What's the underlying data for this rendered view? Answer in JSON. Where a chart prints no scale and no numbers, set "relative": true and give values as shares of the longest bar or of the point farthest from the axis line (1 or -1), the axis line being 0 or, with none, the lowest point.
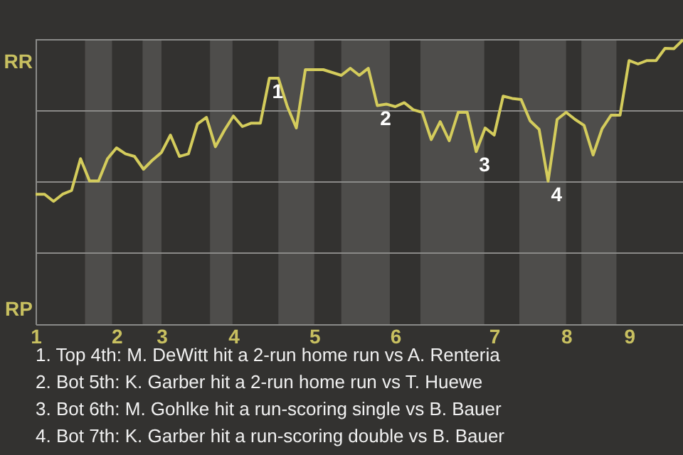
{
  "chart_data": {
    "type": "line",
    "relative": true,
    "categories": [
      "1",
      null,
      null,
      null,
      null,
      null,
      null,
      null,
      null,
      "2",
      null,
      null,
      null,
      null,
      "3",
      null,
      null,
      null,
      null,
      null,
      null,
      null,
      "4",
      null,
      null,
      null,
      null,
      null,
      null,
      null,
      null,
      "5",
      null,
      null,
      null,
      null,
      null,
      null,
      null,
      null,
      "6",
      null,
      null,
      null,
      null,
      null,
      null,
      null,
      null,
      null,
      null,
      "7",
      null,
      null,
      null,
      null,
      null,
      null,
      null,
      "8",
      null,
      null,
      null,
      null,
      null,
      null,
      "9",
      null,
      null,
      null,
      null,
      null,
      null
    ],
    "series": [
      {
        "color": "#d4cc5c",
        "values": [
          0.457,
          0.457,
          0.432,
          0.457,
          0.47,
          0.582,
          0.504,
          0.504,
          0.582,
          0.62,
          0.599,
          0.59,
          0.545,
          0.577,
          0.604,
          0.665,
          0.59,
          0.599,
          0.704,
          0.727,
          0.624,
          0.682,
          0.732,
          0.695,
          0.707,
          0.707,
          0.865,
          0.865,
          0.765,
          0.69,
          0.895,
          0.895,
          0.895,
          0.885,
          0.875,
          0.9,
          0.875,
          0.9,
          0.769,
          0.774,
          0.765,
          0.779,
          0.754,
          0.745,
          0.649,
          0.712,
          0.645,
          0.745,
          0.745,
          0.607,
          0.69,
          0.665,
          0.802,
          0.794,
          0.79,
          0.715,
          0.685,
          0.503,
          0.72,
          0.745,
          0.72,
          0.699,
          0.595,
          0.687,
          0.735,
          0.735,
          0.927,
          0.915,
          0.927,
          0.927,
          0.97,
          0.969,
          1
        ],
        "line_style": "solid"
      }
    ],
    "marker": "none",
    "ref_lines": [
      {
        "axis": "y",
        "value": 0.25,
        "color": "#8a8a88"
      },
      {
        "axis": "y",
        "value": 0.5,
        "color": "#8a8a88"
      },
      {
        "axis": "y",
        "value": 0.75,
        "color": "#8a8a88"
      },
      {
        "axis": "y",
        "value": 1,
        "color": "#8a8a88"
      }
    ],
    "annotations": [
      {
        "text": "1",
        "y": 0.865
      },
      {
        "text": "2",
        "y": 0.769
      },
      {
        "text": "3",
        "y": 0.607
      },
      {
        "text": "4",
        "y": 0.503
      },
      "RR",
      "RP",
      "1. Top 4th: M. DeWitt hit a 2-run home run vs A. Renteria",
      "2. Bot 5th: K. Garber hit a 2-run home run vs T. Huewe",
      "3. Bot 6th: M. Gohlke hit a run-scoring single vs B. Bauer",
      "4. Bot 7th: K. Garber hit a run-scoring double vs B. Bauer"
    ]
  }
}
